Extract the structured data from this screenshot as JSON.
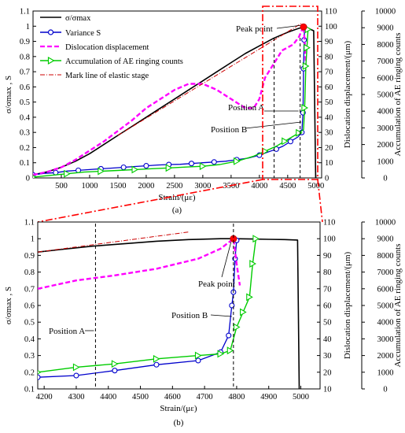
{
  "chart_data": [
    {
      "type": "line",
      "panel_label": "(a)",
      "xlabel": "Strain/(με)",
      "ylabel": "σ/σmax , S",
      "ylabel_right1": "Dislocation displacement/(μm)",
      "ylabel_right2": "Accumulation of AE ringing counts",
      "xlim": [
        0,
        5100
      ],
      "ylim": [
        0,
        1.1
      ],
      "ylim_right1": [
        0,
        110
      ],
      "ylim_right2": [
        0,
        10000
      ],
      "x_ticks": [
        500,
        1000,
        1500,
        2000,
        2500,
        3000,
        3500,
        4000,
        4500,
        5000
      ],
      "y_ticks": [
        0,
        0.1,
        0.2,
        0.3,
        0.4,
        0.5,
        0.6,
        0.7,
        0.8,
        0.9,
        1,
        1.1
      ],
      "y_ticks_right1": [
        0,
        10,
        20,
        30,
        40,
        50,
        60,
        70,
        80,
        90,
        100,
        110
      ],
      "y_ticks_right2": [
        0,
        1000,
        2000,
        3000,
        4000,
        5000,
        6000,
        7000,
        8000,
        9000,
        10000
      ],
      "legend_position": "top-left",
      "series": [
        {
          "name": "σ/σmax",
          "color": "#000000",
          "style": "solid",
          "x": [
            0,
            250,
            500,
            750,
            1000,
            1250,
            1500,
            1750,
            2000,
            2250,
            2500,
            2750,
            3000,
            3250,
            3500,
            3750,
            4000,
            4250,
            4500,
            4650,
            4780,
            4850,
            4900,
            4960,
            4995
          ],
          "y": [
            0.02,
            0.04,
            0.07,
            0.11,
            0.16,
            0.22,
            0.28,
            0.34,
            0.4,
            0.46,
            0.52,
            0.58,
            0.64,
            0.7,
            0.76,
            0.82,
            0.87,
            0.92,
            0.96,
            0.98,
            0.995,
            0.99,
            0.98,
            0.97,
            0.0
          ]
        },
        {
          "name": "Variance S",
          "color": "#0000cc",
          "style": "solid",
          "marker": "circle",
          "x": [
            0,
            200,
            400,
            600,
            800,
            1000,
            1200,
            1400,
            1600,
            1800,
            2000,
            2200,
            2400,
            2600,
            2800,
            3000,
            3200,
            3400,
            3600,
            3800,
            4000,
            4150,
            4300,
            4420,
            4550,
            4680,
            4750,
            4770,
            4780,
            4790,
            4800
          ],
          "y": [
            0.02,
            0.03,
            0.035,
            0.045,
            0.05,
            0.055,
            0.06,
            0.065,
            0.07,
            0.075,
            0.08,
            0.085,
            0.088,
            0.09,
            0.095,
            0.1,
            0.105,
            0.11,
            0.12,
            0.13,
            0.15,
            0.17,
            0.19,
            0.21,
            0.24,
            0.27,
            0.3,
            0.43,
            0.72,
            0.91,
            0.99
          ]
        },
        {
          "name": "Dislocation displacement",
          "color": "#ff00ff",
          "style": "dashed",
          "axis": "right1",
          "x": [
            0,
            250,
            500,
            750,
            1000,
            1250,
            1500,
            1750,
            2000,
            2250,
            2500,
            2750,
            3000,
            3250,
            3500,
            3750,
            3900,
            4000,
            4100,
            4200,
            4300,
            4400,
            4500,
            4600,
            4700,
            4780,
            4800,
            4820
          ],
          "y": [
            2,
            4,
            7,
            12,
            18,
            24,
            31,
            38,
            46,
            52,
            58,
            62,
            62,
            58,
            52,
            46,
            46,
            52,
            66,
            72,
            78,
            84,
            86,
            88,
            93,
            100,
            90,
            75
          ]
        },
        {
          "name": "Accumulation of AE ringing counts",
          "color": "#00cc00",
          "style": "solid",
          "marker": "triangle",
          "axis": "right2",
          "x": [
            0,
            300,
            600,
            900,
            1200,
            1500,
            1800,
            2100,
            2400,
            2700,
            3000,
            3300,
            3600,
            3900,
            4100,
            4300,
            4450,
            4600,
            4700,
            4780,
            4800,
            4820,
            4840,
            4860
          ],
          "y": [
            50,
            150,
            250,
            350,
            400,
            450,
            500,
            550,
            600,
            650,
            700,
            800,
            1000,
            1300,
            1600,
            1900,
            2200,
            2500,
            2700,
            2900,
            4200,
            6700,
            7800,
            8900
          ]
        },
        {
          "name": "Mark line of elastic stage",
          "color": "#cc0000",
          "style": "dashdot",
          "x": [
            1500,
            4750
          ],
          "y": [
            0.28,
            1.02
          ]
        }
      ],
      "annotations": [
        {
          "text": "Peak point",
          "x": 4780,
          "y": 0.995
        },
        {
          "text": "Position A",
          "x": 4260
        },
        {
          "text": "Position B",
          "x": 4720
        }
      ]
    },
    {
      "type": "line",
      "panel_label": "(b)",
      "xlabel": "Strain/(με)",
      "ylabel": "σ/σmax , S",
      "ylabel_right1": "Dislocation displacement/(μm)",
      "ylabel_right2": "Accumulation of AE ringing counts",
      "xlim": [
        4180,
        5060
      ],
      "ylim": [
        0.1,
        1.1
      ],
      "ylim_right1": [
        10,
        110
      ],
      "ylim_right2": [
        0,
        10000
      ],
      "x_ticks": [
        4200,
        4300,
        4400,
        4500,
        4600,
        4700,
        4800,
        4900,
        5000
      ],
      "y_ticks": [
        0.1,
        0.2,
        0.3,
        0.4,
        0.5,
        0.6,
        0.7,
        0.8,
        0.9,
        1,
        1.1
      ],
      "y_ticks_right1": [
        10,
        20,
        30,
        40,
        50,
        60,
        70,
        80,
        90,
        100,
        110
      ],
      "y_ticks_right2": [
        0,
        1000,
        2000,
        3000,
        4000,
        5000,
        6000,
        7000,
        8000,
        9000,
        10000
      ],
      "series": [
        {
          "name": "σ/σmax",
          "color": "#000000",
          "style": "solid",
          "x": [
            4180,
            4250,
            4350,
            4450,
            4550,
            4650,
            4750,
            4790,
            4850,
            4900,
            4950,
            4990,
            4995
          ],
          "y": [
            0.92,
            0.935,
            0.955,
            0.97,
            0.985,
            0.995,
            1.0,
            1.0,
            0.998,
            0.996,
            0.995,
            0.992,
            0.1
          ]
        },
        {
          "name": "Variance S",
          "color": "#0000cc",
          "style": "solid",
          "marker": "circle",
          "x": [
            4180,
            4300,
            4420,
            4550,
            4680,
            4750,
            4775,
            4785,
            4790,
            4795,
            4800
          ],
          "y": [
            0.17,
            0.18,
            0.21,
            0.245,
            0.27,
            0.32,
            0.42,
            0.6,
            0.68,
            0.88,
            0.99
          ]
        },
        {
          "name": "Dislocation displacement",
          "color": "#ff00ff",
          "style": "dashed",
          "axis": "right1",
          "x": [
            4180,
            4300,
            4420,
            4550,
            4680,
            4750,
            4790,
            4800,
            4810
          ],
          "y": [
            70,
            75,
            78,
            82,
            88,
            94,
            100,
            85,
            72
          ]
        },
        {
          "name": "Accumulation of AE ringing counts",
          "color": "#00cc00",
          "style": "solid",
          "marker": "triangle",
          "axis": "right2",
          "x": [
            4180,
            4300,
            4420,
            4550,
            4680,
            4750,
            4780,
            4800,
            4820,
            4840,
            4850,
            4860
          ],
          "y": [
            1000,
            1300,
            1500,
            1800,
            2000,
            2100,
            2300,
            3700,
            4600,
            5500,
            7500,
            9000
          ]
        },
        {
          "name": "Mark line of elastic stage",
          "color": "#cc0000",
          "style": "dashdot",
          "x": [
            4180,
            4650
          ],
          "y": [
            0.92,
            1.04
          ]
        }
      ],
      "annotations": [
        {
          "text": "Peak point",
          "x": 4790,
          "y": 1.0
        },
        {
          "text": "Position A",
          "x": 4360
        },
        {
          "text": "Position B",
          "x": 4790
        }
      ]
    }
  ]
}
